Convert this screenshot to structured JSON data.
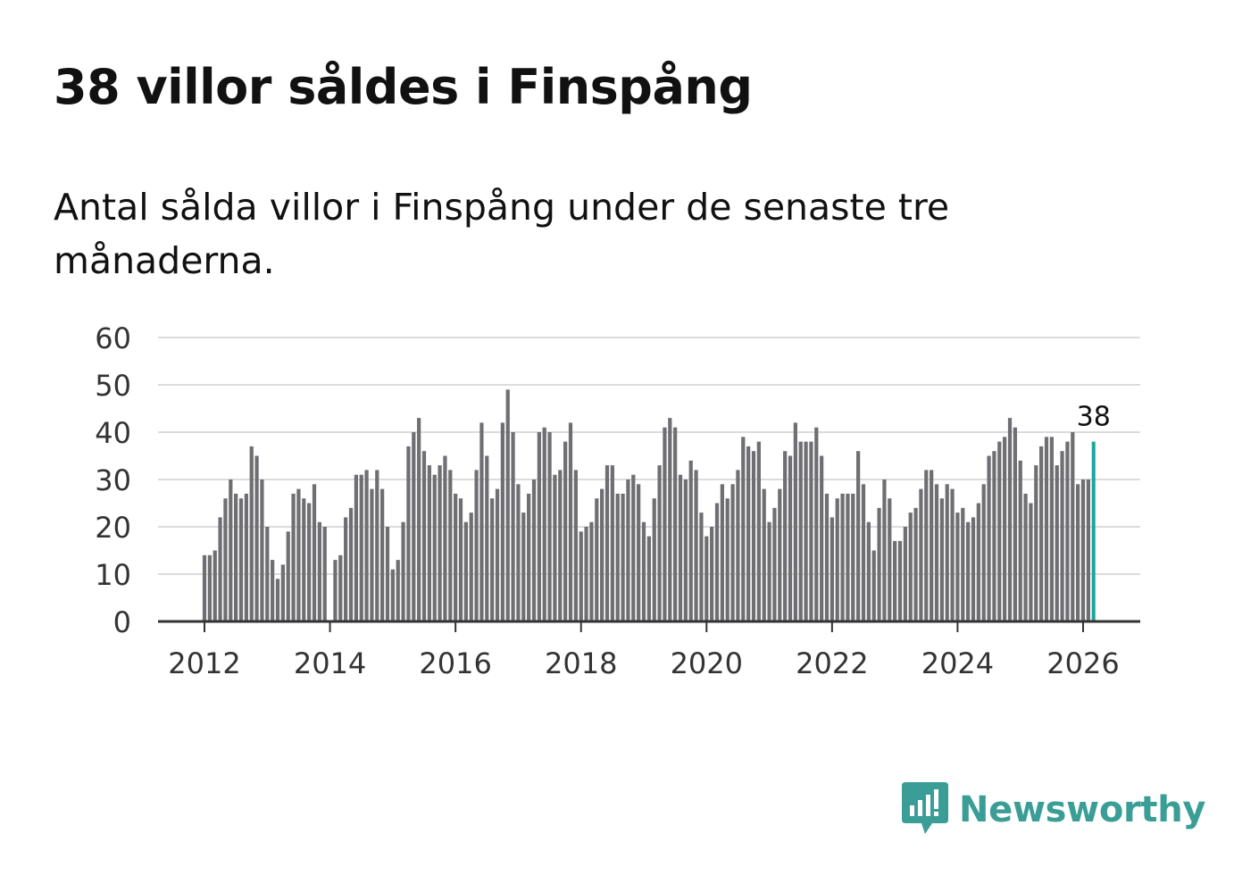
{
  "title": "38 villor såldes i Finspång",
  "subtitle": "Antal sålda villor i Finspång under de senaste tre månaderna.",
  "brand": {
    "name": "Newsworthy",
    "icon": "newsworthy-logo-icon",
    "color": "#3a9e96"
  },
  "colors": {
    "bar": "#6f6e73",
    "highlight": "#1aa59c",
    "grid": "#dcdcdc",
    "axis": "#333333"
  },
  "chart_data": {
    "type": "bar",
    "title": "Antal sålda villor i Finspång",
    "xlabel": "",
    "ylabel": "",
    "ylim": [
      0,
      60
    ],
    "yticks": [
      0,
      10,
      20,
      30,
      40,
      50,
      60
    ],
    "xticks": [
      2012,
      2014,
      2016,
      2018,
      2020,
      2022,
      2024,
      2026
    ],
    "x_start": "2012-01",
    "x_end": "2026-03",
    "values": [
      14,
      14,
      15,
      22,
      26,
      30,
      27,
      26,
      27,
      37,
      35,
      30,
      20,
      13,
      9,
      12,
      19,
      27,
      28,
      26,
      25,
      29,
      21,
      20,
      0,
      13,
      14,
      22,
      24,
      31,
      31,
      32,
      28,
      32,
      28,
      20,
      11,
      13,
      21,
      37,
      40,
      43,
      36,
      33,
      31,
      33,
      35,
      32,
      27,
      26,
      21,
      23,
      32,
      42,
      35,
      26,
      28,
      42,
      49,
      40,
      29,
      23,
      27,
      30,
      40,
      41,
      40,
      31,
      32,
      38,
      42,
      32,
      19,
      20,
      21,
      26,
      28,
      33,
      33,
      27,
      27,
      30,
      31,
      29,
      21,
      18,
      26,
      33,
      41,
      43,
      41,
      31,
      30,
      34,
      32,
      23,
      18,
      20,
      25,
      29,
      26,
      29,
      32,
      39,
      37,
      36,
      38,
      28,
      21,
      24,
      28,
      36,
      35,
      42,
      38,
      38,
      38,
      41,
      35,
      27,
      22,
      26,
      27,
      27,
      27,
      36,
      29,
      21,
      15,
      24,
      30,
      26,
      17,
      17,
      20,
      23,
      24,
      28,
      32,
      32,
      29,
      26,
      29,
      28,
      23,
      24,
      21,
      22,
      25,
      29,
      35,
      36,
      38,
      39,
      43,
      41,
      34,
      27,
      25,
      33,
      37,
      39,
      39,
      33,
      36,
      38,
      40,
      29,
      30,
      30,
      38
    ],
    "highlight_last": true,
    "annotation": "38"
  }
}
